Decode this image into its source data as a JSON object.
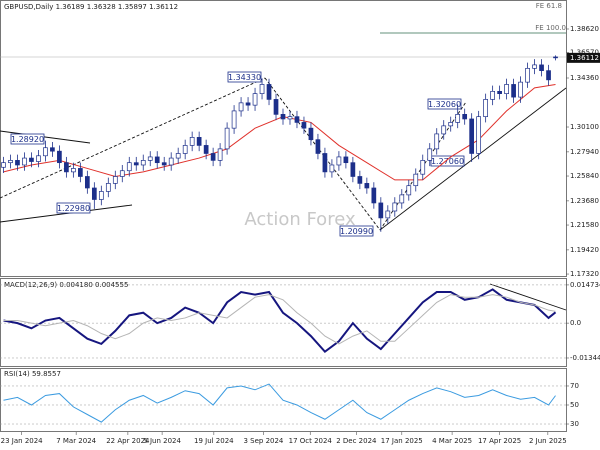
{
  "chart_data": [
    {
      "type": "candlestick",
      "title": "GBPUSD,Daily 1.36189 1.36328 1.35897 1.36112",
      "watermark": "Action Forex",
      "annotations": [
        "1.28920",
        "1.22980",
        "1.34330",
        "1.20990",
        "1.32060",
        "1.27060"
      ],
      "fib_labels": [
        "FE 61.8",
        "FE 100.0"
      ],
      "up_color": "#ffffff",
      "down_color": "#1c2f8a",
      "edge_color": "#1c2f8a",
      "x": [
        0,
        1,
        2,
        3,
        4,
        5,
        6,
        7,
        8,
        9,
        10,
        11,
        12,
        13,
        14,
        15,
        16,
        17,
        18,
        19,
        20,
        21,
        22,
        23,
        24,
        25,
        26,
        27,
        28,
        29,
        30,
        31,
        32,
        33,
        34,
        35,
        36,
        37,
        38,
        39,
        40,
        41,
        42,
        43,
        44,
        45,
        46,
        47,
        48,
        49,
        50,
        51,
        52,
        53,
        54,
        55,
        56,
        57,
        58,
        59,
        60,
        61,
        62,
        63,
        64,
        65,
        66,
        67,
        68,
        69,
        70,
        71,
        72,
        73,
        74,
        75,
        76,
        77,
        78,
        79
      ],
      "open": [
        1.266,
        1.27,
        1.272,
        1.268,
        1.274,
        1.271,
        1.276,
        1.283,
        1.28,
        1.27,
        1.262,
        1.265,
        1.258,
        1.248,
        1.238,
        1.245,
        1.252,
        1.258,
        1.263,
        1.27,
        1.268,
        1.272,
        1.275,
        1.27,
        1.268,
        1.274,
        1.278,
        1.285,
        1.292,
        1.285,
        1.278,
        1.272,
        1.282,
        1.3,
        1.315,
        1.322,
        1.32,
        1.33,
        1.338,
        1.325,
        1.312,
        1.308,
        1.31,
        1.305,
        1.3,
        1.29,
        1.278,
        1.262,
        1.268,
        1.275,
        1.27,
        1.258,
        1.252,
        1.248,
        1.235,
        1.222,
        1.228,
        1.235,
        1.242,
        1.25,
        1.26,
        1.272,
        1.282,
        1.295,
        1.302,
        1.305,
        1.312,
        1.308,
        1.278,
        1.31,
        1.325,
        1.332,
        1.33,
        1.338,
        1.327,
        1.34,
        1.352,
        1.355,
        1.35,
        1.36189
      ],
      "high": [
        1.275,
        1.277,
        1.277,
        1.279,
        1.279,
        1.281,
        1.2892,
        1.288,
        1.285,
        1.275,
        1.27,
        1.27,
        1.263,
        1.253,
        1.25,
        1.257,
        1.263,
        1.268,
        1.275,
        1.275,
        1.277,
        1.28,
        1.28,
        1.275,
        1.279,
        1.283,
        1.29,
        1.297,
        1.297,
        1.29,
        1.283,
        1.287,
        1.305,
        1.32,
        1.327,
        1.327,
        1.335,
        1.3433,
        1.343,
        1.33,
        1.317,
        1.315,
        1.315,
        1.31,
        1.305,
        1.295,
        1.283,
        1.273,
        1.28,
        1.28,
        1.275,
        1.263,
        1.257,
        1.253,
        1.24,
        1.233,
        1.24,
        1.247,
        1.255,
        1.265,
        1.277,
        1.287,
        1.3,
        1.307,
        1.31,
        1.3206,
        1.317,
        1.313,
        1.315,
        1.33,
        1.337,
        1.337,
        1.343,
        1.343,
        1.345,
        1.357,
        1.36,
        1.36,
        1.355,
        1.36328
      ],
      "low": [
        1.261,
        1.265,
        1.263,
        1.263,
        1.266,
        1.266,
        1.271,
        1.275,
        1.265,
        1.257,
        1.257,
        1.253,
        1.243,
        1.2298,
        1.233,
        1.24,
        1.247,
        1.253,
        1.258,
        1.263,
        1.263,
        1.267,
        1.265,
        1.263,
        1.263,
        1.269,
        1.273,
        1.28,
        1.28,
        1.273,
        1.267,
        1.267,
        1.277,
        1.295,
        1.31,
        1.315,
        1.315,
        1.325,
        1.32,
        1.307,
        1.303,
        1.303,
        1.3,
        1.295,
        1.285,
        1.273,
        1.257,
        1.257,
        1.263,
        1.265,
        1.253,
        1.247,
        1.243,
        1.23,
        1.2099,
        1.217,
        1.223,
        1.23,
        1.237,
        1.245,
        1.255,
        1.267,
        1.277,
        1.29,
        1.297,
        1.3,
        1.303,
        1.2706,
        1.273,
        1.305,
        1.32,
        1.325,
        1.325,
        1.322,
        1.322,
        1.335,
        1.347,
        1.345,
        1.337,
        1.35897
      ],
      "close": [
        1.27,
        1.272,
        1.268,
        1.274,
        1.271,
        1.276,
        1.283,
        1.28,
        1.27,
        1.262,
        1.265,
        1.258,
        1.248,
        1.238,
        1.245,
        1.252,
        1.258,
        1.263,
        1.27,
        1.268,
        1.272,
        1.275,
        1.27,
        1.268,
        1.274,
        1.278,
        1.285,
        1.292,
        1.285,
        1.278,
        1.272,
        1.282,
        1.3,
        1.315,
        1.322,
        1.32,
        1.33,
        1.338,
        1.325,
        1.312,
        1.308,
        1.31,
        1.305,
        1.3,
        1.29,
        1.278,
        1.262,
        1.268,
        1.275,
        1.27,
        1.258,
        1.252,
        1.248,
        1.235,
        1.222,
        1.228,
        1.235,
        1.242,
        1.25,
        1.26,
        1.272,
        1.282,
        1.295,
        1.302,
        1.305,
        1.312,
        1.308,
        1.278,
        1.31,
        1.325,
        1.332,
        1.33,
        1.338,
        1.327,
        1.34,
        1.352,
        1.355,
        1.35,
        1.342,
        1.36112
      ],
      "overlays": [
        {
          "color": "#e0312b",
          "x": [
            0,
            4,
            8,
            12,
            16,
            20,
            24,
            28,
            32,
            36,
            40,
            44,
            48,
            52,
            56,
            60,
            64,
            68,
            72,
            76,
            79
          ],
          "values": [
            1.262,
            1.268,
            1.272,
            1.265,
            1.258,
            1.262,
            1.268,
            1.274,
            1.282,
            1.3,
            1.31,
            1.305,
            1.285,
            1.27,
            1.255,
            1.255,
            1.275,
            1.29,
            1.315,
            1.335,
            1.338
          ]
        }
      ],
      "xlim": [
        -0.5,
        80.5
      ],
      "ylim": [
        1.1715,
        1.4114
      ],
      "yticks": [
        {
          "value": 1.3862,
          "label": "1.38620"
        },
        {
          "value": 1.3657,
          "label": "1.36570"
        },
        {
          "value": 1.3436,
          "label": "1.34360"
        },
        {
          "value": 1.301,
          "label": "1.30100"
        },
        {
          "value": 1.2794,
          "label": "1.27940"
        },
        {
          "value": 1.2584,
          "label": "1.25840"
        },
        {
          "value": 1.2368,
          "label": "1.23680"
        },
        {
          "value": 1.2158,
          "label": "1.21580"
        },
        {
          "value": 1.1942,
          "label": "1.19420"
        },
        {
          "value": 1.1732,
          "label": "1.17320"
        }
      ]
    },
    {
      "type": "line",
      "title": "MACD(12,26,9) 0.004180 0.004555",
      "series": [
        {
          "color": "#16167f",
          "width": 2,
          "x": [
            0,
            2,
            4,
            6,
            8,
            10,
            12,
            14,
            16,
            18,
            20,
            22,
            24,
            26,
            28,
            30,
            32,
            34,
            36,
            38,
            40,
            42,
            44,
            46,
            48,
            50,
            52,
            54,
            56,
            58,
            60,
            62,
            64,
            66,
            68,
            70,
            72,
            74,
            76,
            78,
            79
          ],
          "values": [
            0.001,
            0.0,
            -0.002,
            0.001,
            0.002,
            -0.002,
            -0.006,
            -0.008,
            -0.003,
            0.003,
            0.004,
            0.0,
            0.002,
            0.006,
            0.004,
            0.0,
            0.008,
            0.012,
            0.011,
            0.012,
            0.004,
            0.0,
            -0.005,
            -0.011,
            -0.007,
            0.0,
            -0.006,
            -0.01,
            -0.004,
            0.002,
            0.008,
            0.012,
            0.012,
            0.009,
            0.01,
            0.013,
            0.009,
            0.008,
            0.007,
            0.002,
            0.00418
          ]
        },
        {
          "color": "#b5b5b5",
          "width": 1,
          "x": [
            0,
            2,
            4,
            6,
            8,
            10,
            12,
            14,
            16,
            18,
            20,
            22,
            24,
            26,
            28,
            30,
            32,
            34,
            36,
            38,
            40,
            42,
            44,
            46,
            48,
            50,
            52,
            54,
            56,
            58,
            60,
            62,
            64,
            66,
            68,
            70,
            72,
            74,
            76,
            78,
            79
          ],
          "values": [
            0.001,
            0.001,
            0.0,
            -0.001,
            0.0,
            0.001,
            -0.001,
            -0.004,
            -0.006,
            -0.004,
            0.0,
            0.002,
            0.001,
            0.002,
            0.004,
            0.003,
            0.002,
            0.006,
            0.01,
            0.011,
            0.009,
            0.004,
            0.0,
            -0.005,
            -0.008,
            -0.005,
            -0.003,
            -0.007,
            -0.007,
            -0.002,
            0.003,
            0.008,
            0.011,
            0.01,
            0.01,
            0.011,
            0.01,
            0.008,
            0.007,
            0.005,
            0.004555
          ]
        }
      ],
      "xlim": [
        -0.5,
        80.5
      ],
      "ylim": [
        -0.01653,
        0.0174
      ],
      "yticks": [
        0.014734,
        {
          "value": 0,
          "label": "0.0"
        },
        -0.013442
      ]
    },
    {
      "type": "line",
      "title": "RSI(14) 59.8557",
      "series": [
        {
          "color": "#3b9be0",
          "width": 1,
          "x": [
            0,
            2,
            4,
            6,
            8,
            10,
            12,
            14,
            16,
            18,
            20,
            22,
            24,
            26,
            28,
            30,
            32,
            34,
            36,
            38,
            40,
            42,
            44,
            46,
            48,
            50,
            52,
            54,
            56,
            58,
            60,
            62,
            64,
            66,
            68,
            70,
            72,
            74,
            76,
            78,
            79
          ],
          "values": [
            55,
            58,
            50,
            60,
            62,
            48,
            40,
            32,
            45,
            55,
            60,
            52,
            58,
            65,
            62,
            50,
            68,
            70,
            66,
            72,
            55,
            50,
            42,
            35,
            45,
            55,
            42,
            35,
            45,
            55,
            62,
            68,
            64,
            58,
            60,
            66,
            60,
            56,
            58,
            50,
            59.8557
          ]
        }
      ],
      "xlim": [
        -0.5,
        80.5
      ],
      "ylim": [
        21.6,
        88.9
      ],
      "yticks": [
        30,
        50,
        70
      ],
      "xticks": [
        {
          "value": 2.6,
          "label": "23 Jan 2024"
        },
        {
          "value": 10.4,
          "label": "7 Mar 2024"
        },
        {
          "value": 17.8,
          "label": "22 Apr 2024"
        },
        {
          "value": 22.7,
          "label": "5 Jun 2024"
        },
        {
          "value": 30.1,
          "label": "19 Jul 2024"
        },
        {
          "value": 37.2,
          "label": "3 Sep 2024"
        },
        {
          "value": 43.9,
          "label": "17 Oct 2024"
        },
        {
          "value": 50.5,
          "label": "2 Dec 2024"
        },
        {
          "value": 57,
          "label": "17 Jan 2025"
        },
        {
          "value": 64.2,
          "label": "4 Mar 2025"
        },
        {
          "value": 71,
          "label": "17 Apr 2025"
        },
        {
          "value": 77.9,
          "label": "2 Jun 2025"
        }
      ]
    }
  ]
}
